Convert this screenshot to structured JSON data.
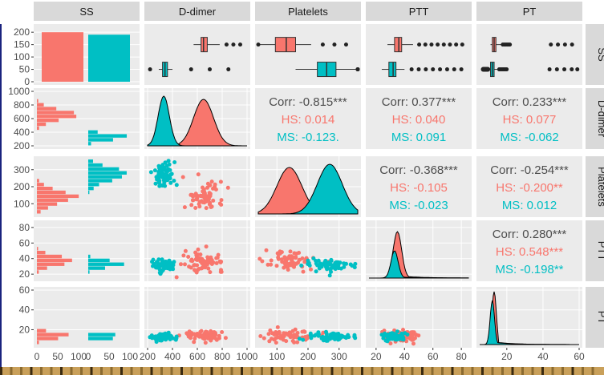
{
  "chart_data": {
    "type": "pairs",
    "title": "",
    "variables": [
      "SS",
      "D-dimer",
      "Platelets",
      "PTT",
      "PT"
    ],
    "groups": [
      {
        "name": "HS",
        "color": "#F8766D"
      },
      {
        "name": "MS",
        "color": "#00BFC4"
      }
    ],
    "axis_ticks": {
      "x": [
        [
          "0",
          "50",
          "100",
          "0",
          "50",
          "100"
        ],
        [
          "200",
          "400",
          "600",
          "800",
          "1000"
        ],
        [
          "100",
          "200",
          "300"
        ],
        [
          "20",
          "40",
          "60",
          "80"
        ],
        [
          "20",
          "40",
          "60"
        ]
      ],
      "y": [
        [
          "0",
          "50",
          "100",
          "150",
          "200"
        ],
        [
          "200",
          "400",
          "600",
          "800",
          "1000"
        ],
        [
          "100",
          "200",
          "300"
        ],
        [
          "20",
          "40",
          "60",
          "80"
        ],
        [
          "20",
          "40",
          "60"
        ]
      ]
    },
    "ss_counts": {
      "HS": 200,
      "MS": 190
    },
    "boxplots": {
      "D-dimer": {
        "HS": [
          570,
          630,
          650,
          680,
          780
        ],
        "MS": [
          290,
          320,
          340,
          360,
          400
        ]
      },
      "Platelets": {
        "HS": [
          40,
          95,
          130,
          160,
          210
        ],
        "MS": [
          160,
          230,
          260,
          290,
          360
        ]
      },
      "PTT": {
        "HS": [
          28,
          33,
          36,
          38,
          46
        ],
        "MS": [
          24,
          29,
          32,
          34,
          40
        ]
      },
      "PT": {
        "HS": [
          11,
          12,
          13,
          14,
          17
        ],
        "MS": [
          10,
          11,
          12,
          13,
          15
        ]
      }
    },
    "correlations": [
      {
        "row": "D-dimer",
        "col": "Platelets",
        "corr": "Corr: -0.815***",
        "hs": "HS: 0.014",
        "ms": "MS: -0.123."
      },
      {
        "row": "D-dimer",
        "col": "PTT",
        "corr": "Corr: 0.377***",
        "hs": "HS: 0.040",
        "ms": "MS: 0.091"
      },
      {
        "row": "D-dimer",
        "col": "PT",
        "corr": "Corr: 0.233***",
        "hs": "HS: 0.077",
        "ms": "MS: -0.062"
      },
      {
        "row": "Platelets",
        "col": "PTT",
        "corr": "Corr: -0.368***",
        "hs": "HS: -0.105",
        "ms": "MS: -0.023"
      },
      {
        "row": "Platelets",
        "col": "PT",
        "corr": "Corr: -0.254***",
        "hs": "HS: -0.200**",
        "ms": "MS: 0.012"
      },
      {
        "row": "PTT",
        "col": "PT",
        "corr": "Corr: 0.280***",
        "hs": "HS: 0.548***",
        "ms": "MS: -0.198**"
      }
    ],
    "hist_max": 100
  }
}
